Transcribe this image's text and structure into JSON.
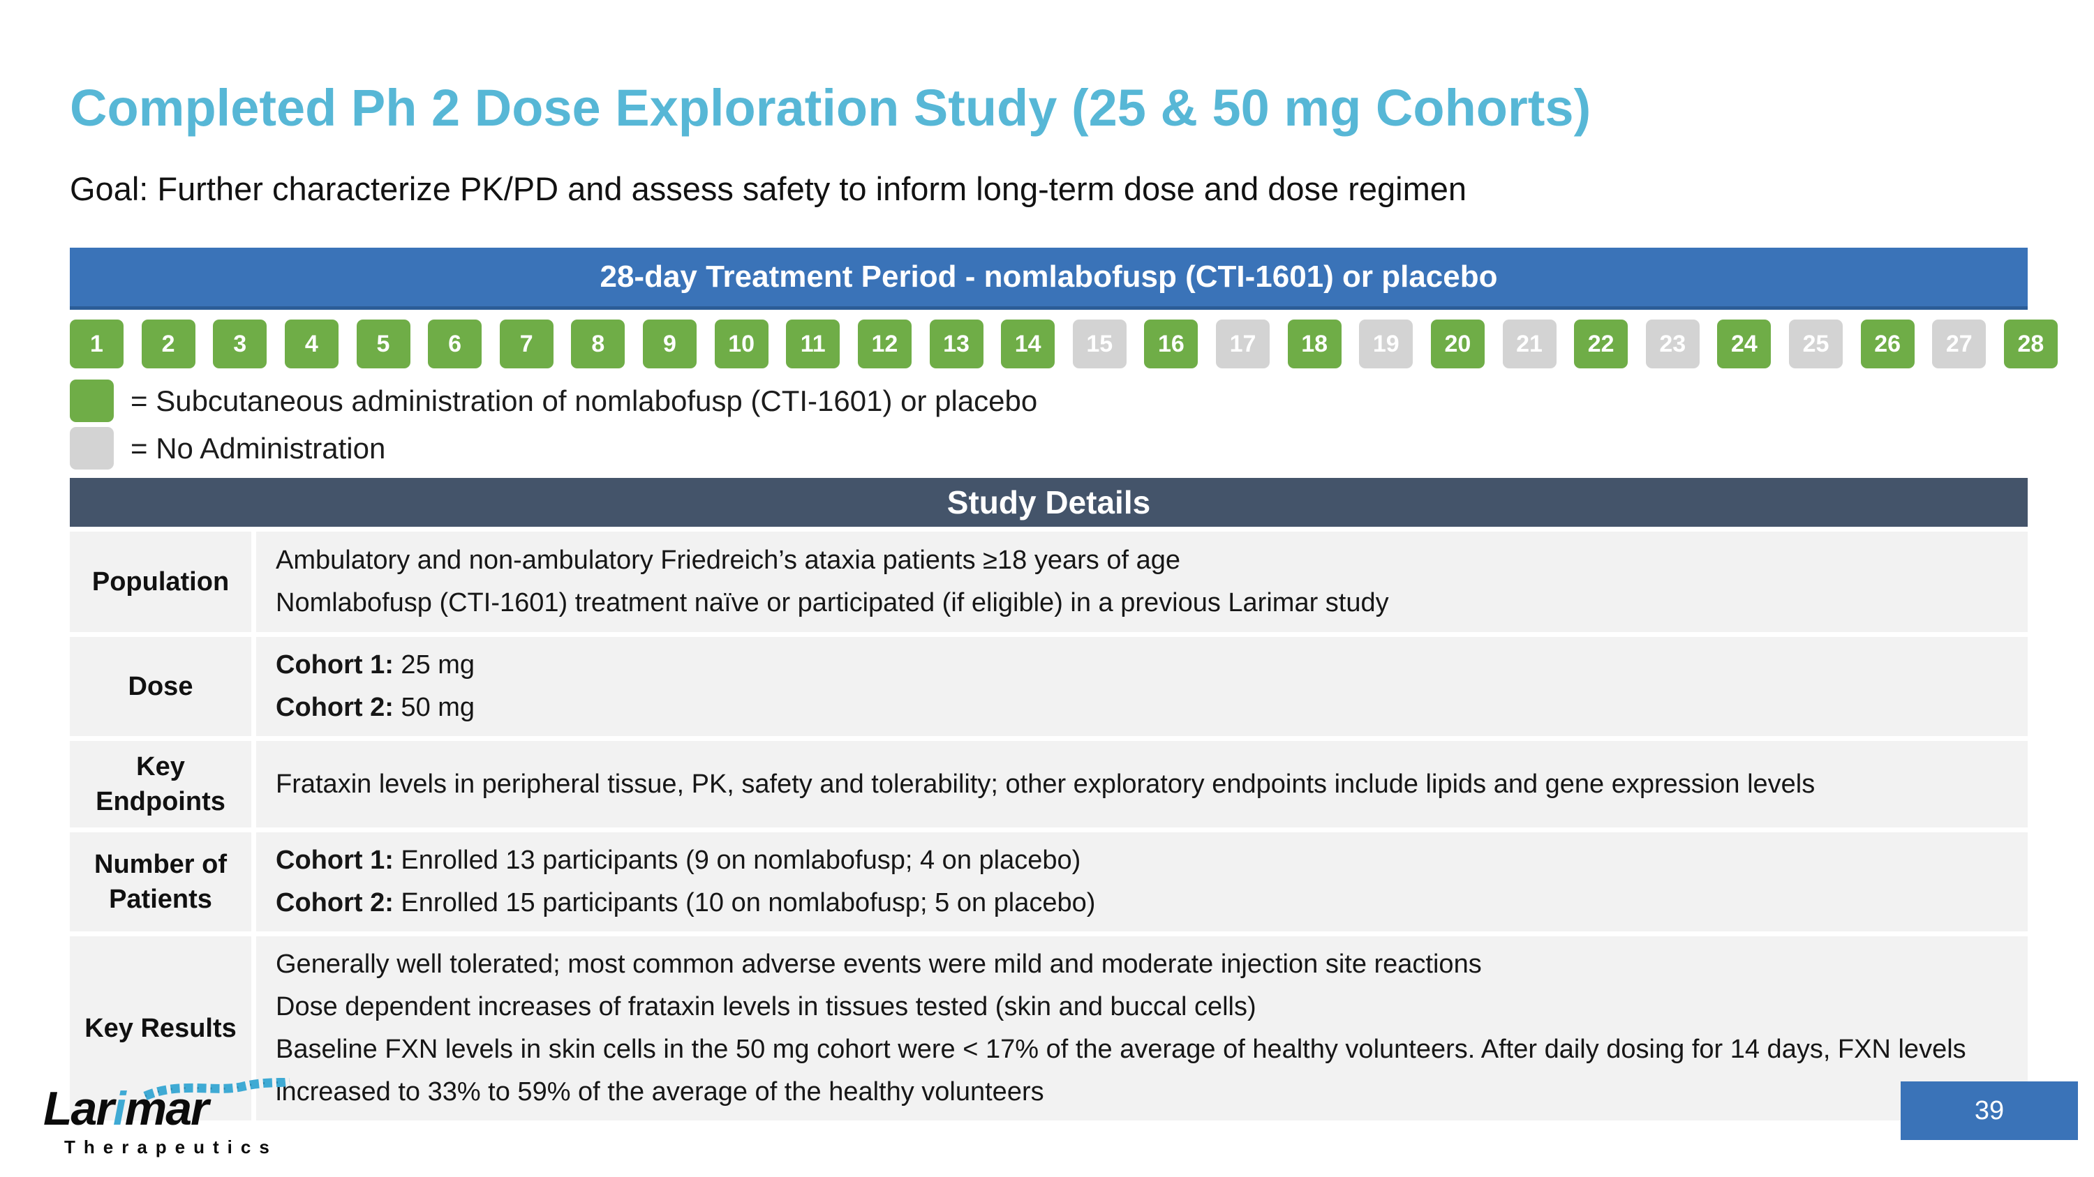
{
  "colors": {
    "title_teal": "#57B7D6",
    "banner_blue": "#3A73B8",
    "banner_edge": "#2C5D97",
    "dose_green": "#6FAD47",
    "noadmin_gray": "#D3D3D3",
    "header_slate": "#44546A",
    "row_bg": "#F2F2F2",
    "logo_teal": "#3FAAD4"
  },
  "slide": {
    "title": "Completed Ph 2 Dose Exploration Study (25 & 50 mg Cohorts)",
    "subtitle": "Goal: Further characterize PK/PD and assess safety to inform long-term dose and dose regimen",
    "page_number": "39"
  },
  "treatment_banner": {
    "label": "28-day Treatment Period - nomlabofusp (CTI-1601) or placebo"
  },
  "schedule": {
    "days": [
      {
        "n": "1",
        "state": "dose"
      },
      {
        "n": "2",
        "state": "dose"
      },
      {
        "n": "3",
        "state": "dose"
      },
      {
        "n": "4",
        "state": "dose"
      },
      {
        "n": "5",
        "state": "dose"
      },
      {
        "n": "6",
        "state": "dose"
      },
      {
        "n": "7",
        "state": "dose"
      },
      {
        "n": "8",
        "state": "dose"
      },
      {
        "n": "9",
        "state": "dose"
      },
      {
        "n": "10",
        "state": "dose"
      },
      {
        "n": "11",
        "state": "dose"
      },
      {
        "n": "12",
        "state": "dose"
      },
      {
        "n": "13",
        "state": "dose"
      },
      {
        "n": "14",
        "state": "dose"
      },
      {
        "n": "15",
        "state": "none"
      },
      {
        "n": "16",
        "state": "dose"
      },
      {
        "n": "17",
        "state": "none"
      },
      {
        "n": "18",
        "state": "dose"
      },
      {
        "n": "19",
        "state": "none"
      },
      {
        "n": "20",
        "state": "dose"
      },
      {
        "n": "21",
        "state": "none"
      },
      {
        "n": "22",
        "state": "dose"
      },
      {
        "n": "23",
        "state": "none"
      },
      {
        "n": "24",
        "state": "dose"
      },
      {
        "n": "25",
        "state": "none"
      },
      {
        "n": "26",
        "state": "dose"
      },
      {
        "n": "27",
        "state": "none"
      },
      {
        "n": "28",
        "state": "dose"
      }
    ],
    "legend": [
      {
        "swatch": "dose",
        "text": "= Subcutaneous administration of nomlabofusp (CTI-1601) or placebo"
      },
      {
        "swatch": "none",
        "text": "= No Administration"
      }
    ]
  },
  "study_details": {
    "header": "Study Details",
    "rows": [
      {
        "label": "Population",
        "lines": [
          {
            "text": "Ambulatory and non-ambulatory Friedreich’s ataxia patients ≥18 years of age"
          },
          {
            "text": "Nomlabofusp (CTI-1601) treatment naïve or participated (if eligible) in a previous Larimar study"
          }
        ]
      },
      {
        "label": "Dose",
        "lines": [
          {
            "strong": "Cohort 1:",
            "text": " 25 mg"
          },
          {
            "strong": "Cohort 2:",
            "text": " 50 mg"
          }
        ]
      },
      {
        "label": "Key Endpoints",
        "lines": [
          {
            "text": "Frataxin levels in peripheral tissue, PK, safety and tolerability; other exploratory endpoints include lipids and gene expression levels"
          }
        ]
      },
      {
        "label": "Number of Patients",
        "lines": [
          {
            "strong": "Cohort 1:",
            "text": " Enrolled 13 participants (9 on nomlabofusp; 4 on placebo)"
          },
          {
            "strong": "Cohort 2:",
            "text": " Enrolled 15 participants (10 on nomlabofusp; 5 on placebo)"
          }
        ]
      },
      {
        "label": "Key Results",
        "lines": [
          {
            "text": "Generally well tolerated; most common adverse events were mild and moderate injection site reactions"
          },
          {
            "text": "Dose dependent increases of frataxin levels in tissues tested (skin and buccal cells)"
          },
          {
            "text": "Baseline FXN levels in skin cells in the 50 mg cohort were < 17% of the average of healthy volunteers. After daily dosing for 14 days, FXN levels increased to 33% to 59% of the average of the healthy volunteers"
          }
        ]
      }
    ]
  },
  "logo": {
    "name_prefix": "Lar",
    "name_i": "i",
    "name_suffix": "mar",
    "tagline": "Therapeutics"
  }
}
